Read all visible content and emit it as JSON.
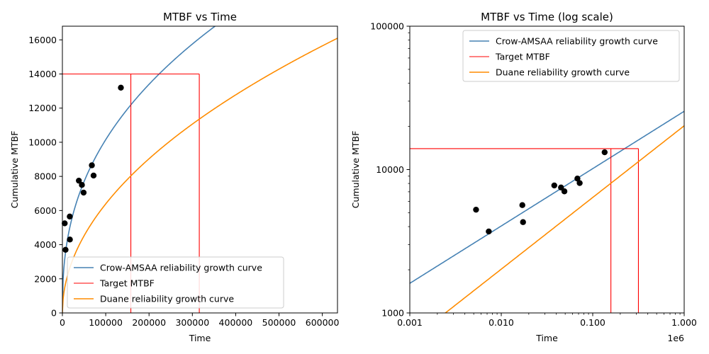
{
  "chart_data": [
    {
      "type": "line",
      "title": "MTBF vs Time",
      "xlabel": "Time",
      "ylabel": "Cumulative MTBF",
      "xlim": [
        0,
        635000
      ],
      "ylim": [
        0,
        16800
      ],
      "xscale": "linear",
      "yscale": "linear",
      "xticks": [
        0,
        100000,
        200000,
        300000,
        400000,
        500000,
        600000
      ],
      "xtick_labels": [
        "0",
        "100000",
        "200000",
        "300000",
        "400000",
        "500000",
        "600000"
      ],
      "yticks": [
        0,
        2000,
        4000,
        6000,
        8000,
        10000,
        12000,
        14000,
        16000
      ],
      "ytick_labels": [
        "0",
        "2000",
        "4000",
        "6000",
        "8000",
        "10000",
        "12000",
        "14000",
        "16000"
      ],
      "x_multiplier": "",
      "grid": false,
      "legend_position": "lower-left",
      "legend": [
        "Crow-AMSAA reliability growth curve",
        "Target MTBF",
        "Duane reliability growth curve"
      ],
      "series": [
        {
          "name": "Crow-AMSAA reliability growth curve",
          "kind": "curve",
          "color": "#4682b4",
          "model": {
            "a": 25.5,
            "b": 0.4,
            "unit": 1000000
          }
        },
        {
          "name": "Target MTBF",
          "kind": "target",
          "color": "#ff0000",
          "target_y": 14000,
          "x_targets": [
            158000,
            316000
          ]
        },
        {
          "name": "Duane reliability growth curve",
          "kind": "curve",
          "color": "#ff8c00",
          "model": {
            "a": 20.2,
            "b": 0.5,
            "unit": 1000000
          }
        },
        {
          "name": "",
          "kind": "points",
          "color": "#000000",
          "x": [
            5300,
            7300,
            17000,
            17300,
            38000,
            45000,
            49000,
            68000,
            72000,
            135000
          ],
          "y": [
            5250,
            3700,
            5650,
            4300,
            7750,
            7500,
            7050,
            8650,
            8050,
            13200
          ]
        }
      ]
    },
    {
      "type": "line",
      "title": "MTBF vs Time (log scale)",
      "xlabel": "Time",
      "ylabel": "Cumulative MTBF",
      "xlim": [
        1000,
        1000000
      ],
      "ylim": [
        1000,
        100000
      ],
      "xscale": "log",
      "yscale": "log",
      "xticks": [
        1000,
        10000,
        100000,
        1000000
      ],
      "xtick_labels": [
        "0.001",
        "0.010",
        "0.100",
        "1.000"
      ],
      "yticks": [
        1000,
        10000,
        100000
      ],
      "ytick_labels": [
        "1000",
        "10000",
        "100000"
      ],
      "x_multiplier": "1e6",
      "grid": false,
      "legend_position": "upper-right",
      "legend": [
        "Crow-AMSAA reliability growth curve",
        "Target MTBF",
        "Duane reliability growth curve"
      ],
      "series": [
        {
          "name": "Crow-AMSAA reliability growth curve",
          "kind": "curve",
          "color": "#4682b4",
          "model": {
            "a": 25.5,
            "b": 0.4,
            "unit": 1000000
          }
        },
        {
          "name": "Target MTBF",
          "kind": "target",
          "color": "#ff0000",
          "target_y": 14000,
          "x_targets": [
            158000,
            316000
          ]
        },
        {
          "name": "Duane reliability growth curve",
          "kind": "curve",
          "color": "#ff8c00",
          "model": {
            "a": 20.2,
            "b": 0.5,
            "unit": 1000000
          }
        },
        {
          "name": "",
          "kind": "points",
          "color": "#000000",
          "x": [
            5300,
            7300,
            17000,
            17300,
            38000,
            45000,
            49000,
            68000,
            72000,
            135000
          ],
          "y": [
            5250,
            3700,
            5650,
            4300,
            7750,
            7500,
            7050,
            8650,
            8050,
            13200
          ]
        }
      ]
    }
  ]
}
